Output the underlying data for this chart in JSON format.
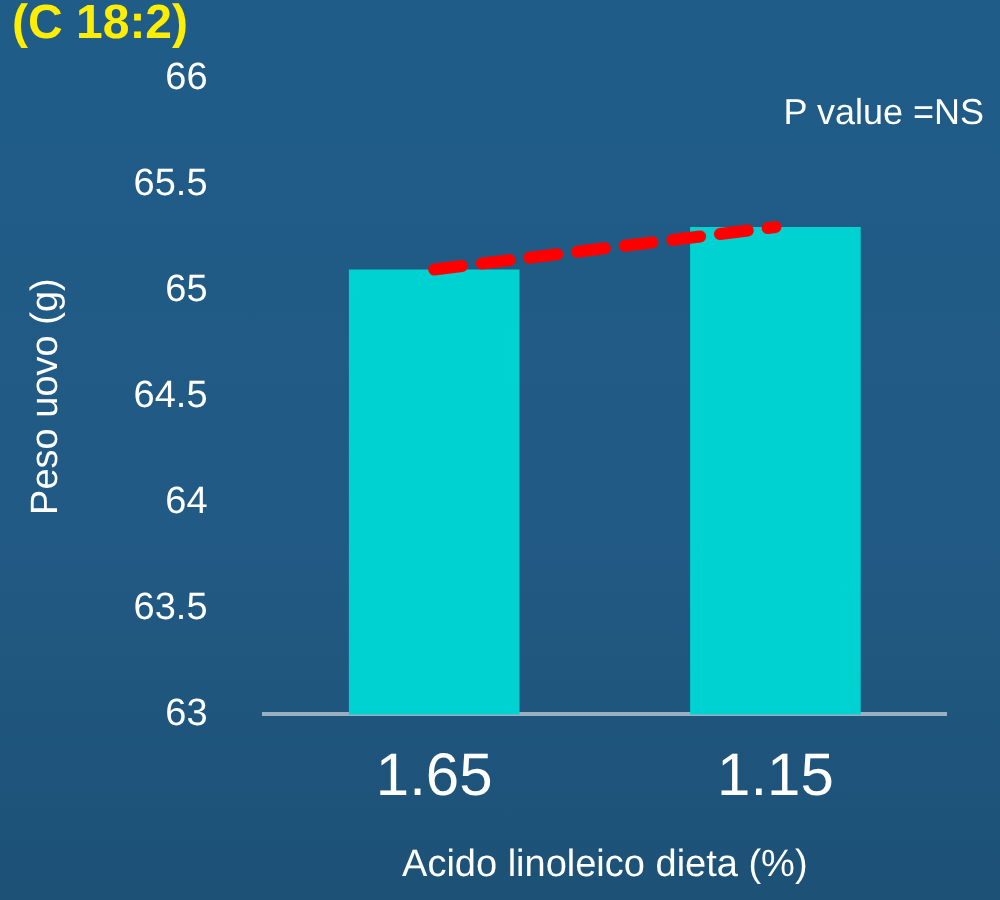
{
  "chart_data": {
    "type": "bar",
    "title": "(C 18:2)",
    "xlabel": "Acido linoleico dieta (%)",
    "ylabel": "Peso uovo (g)",
    "annotations": [
      "P value =NS"
    ],
    "categories": [
      "1.65",
      "1.15"
    ],
    "series": [
      {
        "color": "#00d2d2",
        "values": [
          65.1,
          65.3
        ]
      },
      {
        "type": "line",
        "color": "#ff0000",
        "values": [
          65.1,
          65.3
        ],
        "line_style": "dashed",
        "marker": "none"
      }
    ],
    "ylim": [
      63,
      66
    ],
    "yticks": [
      63,
      63.5,
      64,
      64.5,
      65,
      65.5,
      66
    ],
    "grid": false,
    "legend": false
  }
}
